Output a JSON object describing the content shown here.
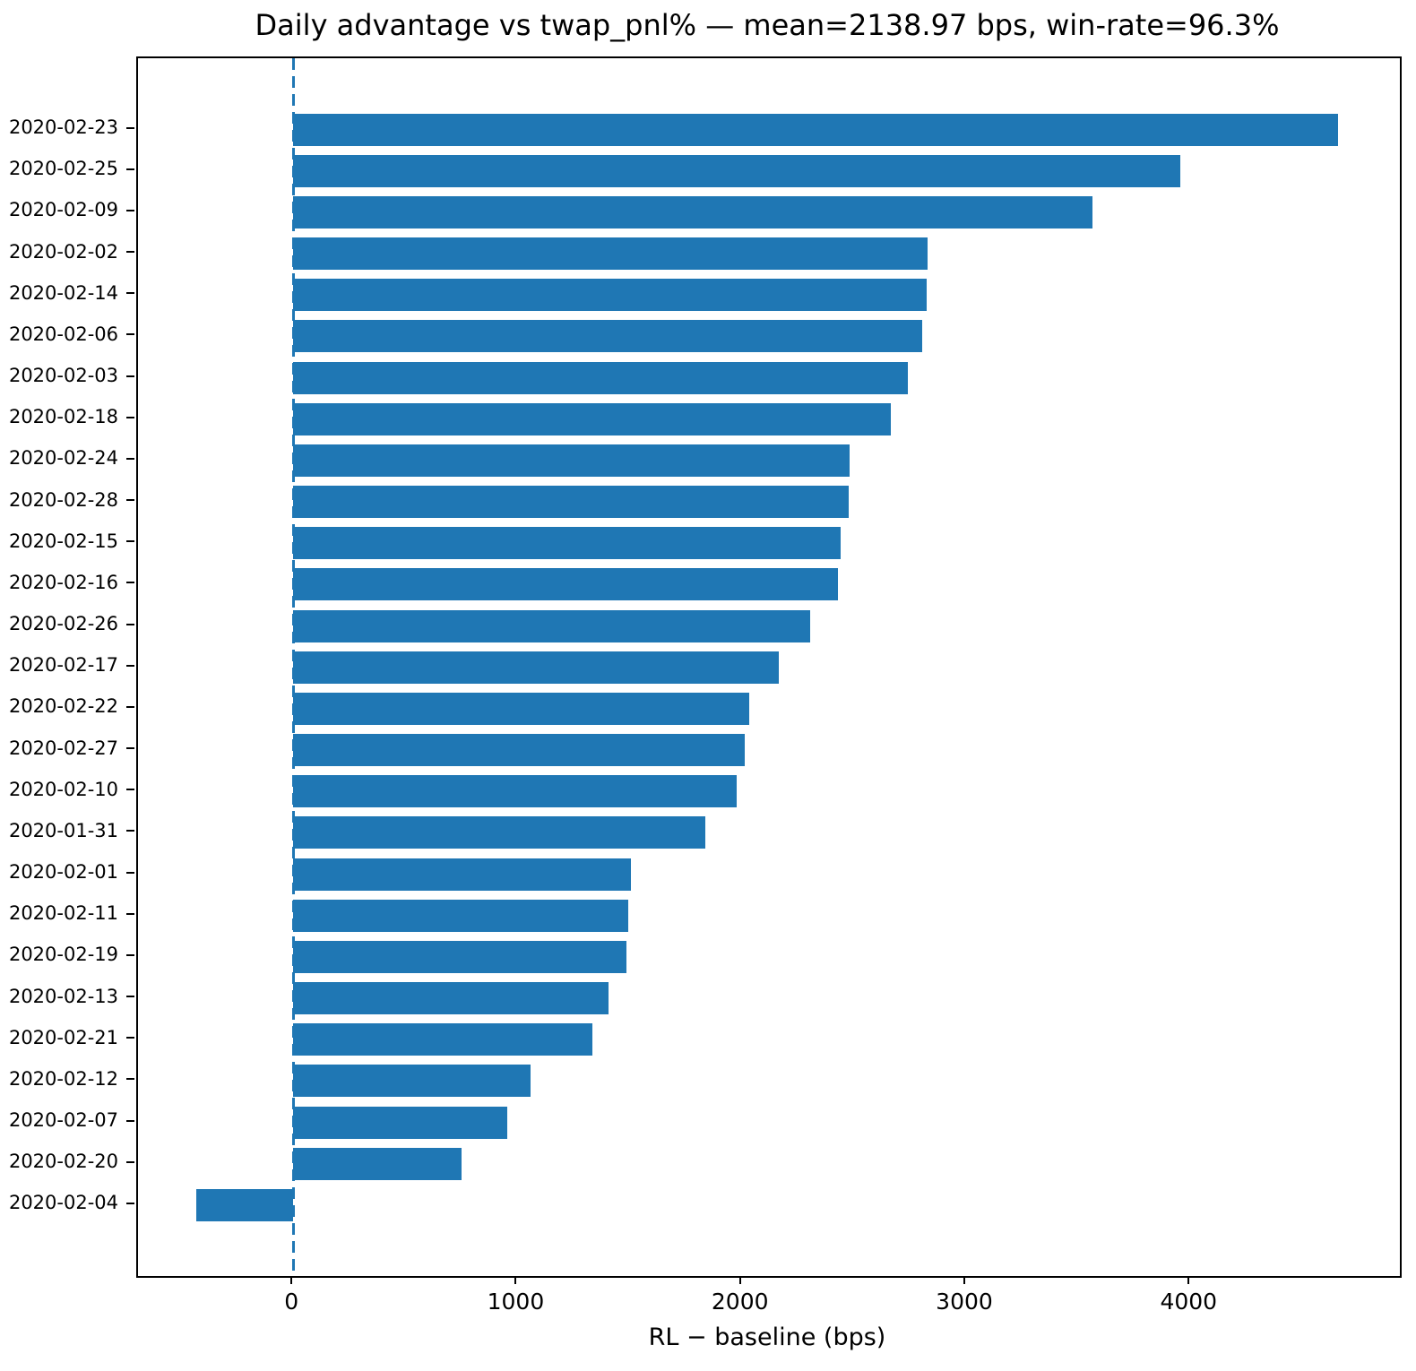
{
  "chart_data": {
    "type": "bar",
    "orientation": "horizontal",
    "title": "Daily advantage vs twap_pnl% — mean=2138.97 bps, win-rate=96.3%",
    "xlabel": "RL − baseline (bps)",
    "ylabel": "",
    "categories": [
      "2020-02-23",
      "2020-02-25",
      "2020-02-09",
      "2020-02-02",
      "2020-02-14",
      "2020-02-06",
      "2020-02-03",
      "2020-02-18",
      "2020-02-24",
      "2020-02-28",
      "2020-02-15",
      "2020-02-16",
      "2020-02-26",
      "2020-02-17",
      "2020-02-22",
      "2020-02-27",
      "2020-02-10",
      "2020-01-31",
      "2020-02-01",
      "2020-02-11",
      "2020-02-19",
      "2020-02-13",
      "2020-02-21",
      "2020-02-12",
      "2020-02-07",
      "2020-02-20",
      "2020-02-04"
    ],
    "values": [
      4659,
      3957,
      3563,
      2830,
      2824,
      2805,
      2739,
      2666,
      2480,
      2475,
      2439,
      2428,
      2304,
      2167,
      2033,
      2014,
      1979,
      1837,
      1507,
      1494,
      1486,
      1407,
      1335,
      1058,
      953,
      749,
      -434
    ],
    "x_ticks": [
      0,
      1000,
      2000,
      3000,
      4000
    ],
    "xlim": [
      -692,
      4934
    ],
    "bar_color": "#1f77b4",
    "zero_line": {
      "x": 0,
      "style": "dashed",
      "color": "#1f77b4"
    },
    "stats": {
      "mean_bps": 2138.97,
      "win_rate_pct": 96.3
    },
    "grid": false,
    "legend": null
  }
}
